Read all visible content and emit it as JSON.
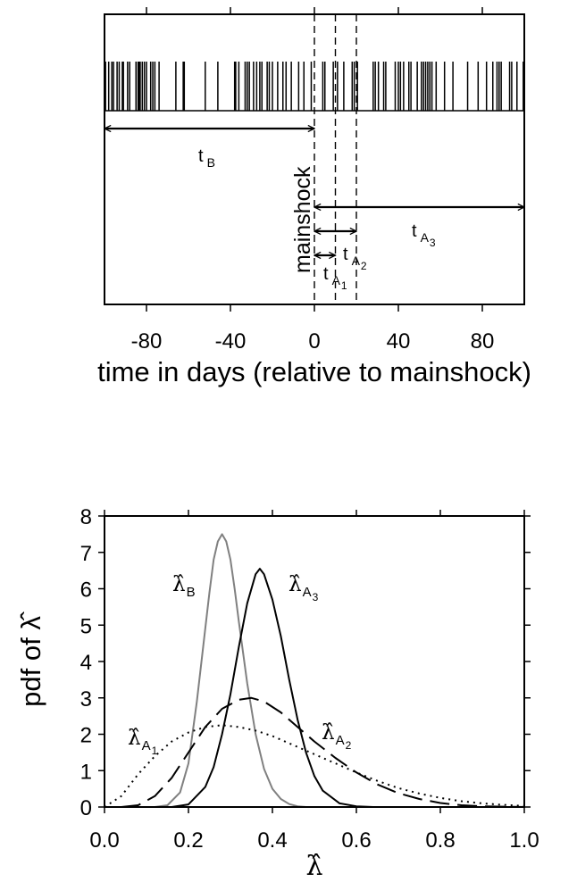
{
  "chart_data": [
    {
      "type": "event-timeline",
      "xlabel": "time in days (relative to mainshock)",
      "xlim": [
        -100,
        100
      ],
      "xticks": [
        -80,
        -40,
        0,
        40,
        80
      ],
      "xtick_labels": [
        "-80",
        "-40",
        "0",
        "40",
        "80"
      ],
      "event_times": [
        -99.5,
        -98,
        -96.5,
        -95.7,
        -94,
        -93,
        -91.5,
        -91,
        -89,
        -88,
        -85,
        -84,
        -83.5,
        -83,
        -82,
        -81,
        -80,
        -78,
        -77,
        -76,
        -74,
        -66,
        -62.5,
        -62,
        -52,
        -46,
        -38,
        -37.5,
        -36,
        -33,
        -32,
        -31,
        -29,
        -27.5,
        -26,
        -25,
        -22.5,
        -21.5,
        -20,
        -17.5,
        -15,
        -13.5,
        -11,
        -7.5,
        -5,
        -1.5,
        4,
        5,
        9,
        11,
        14,
        18,
        19,
        20.5,
        28,
        29,
        30.5,
        33,
        34,
        38.5,
        40,
        41,
        42.5,
        45,
        46,
        49,
        51,
        52,
        53,
        54,
        55,
        56,
        58,
        62,
        66,
        73,
        78,
        82,
        85,
        87,
        88,
        89,
        93,
        94,
        96.5,
        99.5
      ],
      "mainshock_marker": {
        "label": "mainshock",
        "x": 0
      },
      "reference_lines_x": [
        0,
        10,
        20
      ],
      "intervals": [
        {
          "label": "t",
          "sub": "B",
          "start": -100,
          "end": 0
        },
        {
          "label": "t",
          "sub": "A",
          "subsub": "3",
          "start": 0,
          "end": 100
        },
        {
          "label": "t",
          "sub": "A",
          "subsub": "2",
          "start": 0,
          "end": 20
        },
        {
          "label": "t",
          "sub": "A",
          "subsub": "1",
          "start": 0,
          "end": 10
        }
      ]
    },
    {
      "type": "line",
      "xlabel": "λ̂",
      "ylabel": "pdf of λ̂",
      "xlim": [
        0,
        1
      ],
      "ylim": [
        0,
        8
      ],
      "xticks": [
        0.0,
        0.2,
        0.4,
        0.6,
        0.8,
        1.0
      ],
      "xtick_labels": [
        "0.0",
        "0.2",
        "0.4",
        "0.6",
        "0.8",
        "1.0"
      ],
      "yticks": [
        0,
        1,
        2,
        3,
        4,
        5,
        6,
        7,
        8
      ],
      "ytick_labels": [
        "0",
        "1",
        "2",
        "3",
        "4",
        "5",
        "6",
        "7",
        "8"
      ],
      "series": [
        {
          "name": "λ̂B",
          "style": "solid",
          "color": "#808080",
          "x": [
            0.12,
            0.15,
            0.18,
            0.2,
            0.22,
            0.24,
            0.25,
            0.26,
            0.27,
            0.28,
            0.29,
            0.3,
            0.31,
            0.32,
            0.34,
            0.36,
            0.38,
            0.4,
            0.42,
            0.44,
            0.46,
            0.48
          ],
          "y": [
            0.0,
            0.05,
            0.4,
            1.2,
            2.9,
            4.9,
            5.9,
            6.8,
            7.3,
            7.5,
            7.3,
            6.8,
            6.0,
            5.1,
            3.4,
            2.0,
            1.05,
            0.5,
            0.22,
            0.08,
            0.02,
            0.0
          ]
        },
        {
          "name": "λ̂A3",
          "style": "solid",
          "color": "#000000",
          "x": [
            0.16,
            0.2,
            0.24,
            0.26,
            0.28,
            0.3,
            0.32,
            0.34,
            0.36,
            0.37,
            0.38,
            0.4,
            0.42,
            0.44,
            0.46,
            0.48,
            0.5,
            0.52,
            0.56,
            0.6,
            0.64
          ],
          "y": [
            0.0,
            0.07,
            0.55,
            1.1,
            2.0,
            3.1,
            4.4,
            5.6,
            6.4,
            6.55,
            6.4,
            5.7,
            4.7,
            3.5,
            2.4,
            1.5,
            0.85,
            0.45,
            0.1,
            0.02,
            0.0
          ]
        },
        {
          "name": "λ̂A2",
          "style": "dashed",
          "color": "#000000",
          "x": [
            0.04,
            0.08,
            0.12,
            0.16,
            0.2,
            0.24,
            0.28,
            0.32,
            0.35,
            0.38,
            0.42,
            0.46,
            0.5,
            0.55,
            0.6,
            0.65,
            0.7,
            0.75,
            0.8,
            0.85,
            0.9,
            0.95,
            1.0
          ],
          "y": [
            0.0,
            0.05,
            0.3,
            0.8,
            1.5,
            2.2,
            2.7,
            2.95,
            3.0,
            2.9,
            2.6,
            2.2,
            1.8,
            1.35,
            0.95,
            0.62,
            0.38,
            0.22,
            0.11,
            0.05,
            0.02,
            0.01,
            0.0
          ]
        },
        {
          "name": "λ̂A1",
          "style": "dotted",
          "color": "#000000",
          "x": [
            0.0,
            0.04,
            0.08,
            0.12,
            0.16,
            0.2,
            0.24,
            0.28,
            0.32,
            0.36,
            0.4,
            0.45,
            0.5,
            0.55,
            0.6,
            0.65,
            0.7,
            0.75,
            0.8,
            0.85,
            0.9,
            0.95,
            1.0
          ],
          "y": [
            0.0,
            0.3,
            0.9,
            1.4,
            1.8,
            2.05,
            2.2,
            2.25,
            2.2,
            2.1,
            1.95,
            1.7,
            1.45,
            1.2,
            0.95,
            0.72,
            0.52,
            0.37,
            0.25,
            0.16,
            0.1,
            0.06,
            0.03
          ]
        }
      ],
      "curve_labels": [
        {
          "series": "λ̂B",
          "text": "λ̂",
          "sub": "B",
          "subsub": ""
        },
        {
          "series": "λ̂A3",
          "text": "λ̂",
          "sub": "A",
          "subsub": "3"
        },
        {
          "series": "λ̂A2",
          "text": "λ̂",
          "sub": "A",
          "subsub": "2"
        },
        {
          "series": "λ̂A1",
          "text": "λ̂",
          "sub": "A",
          "subsub": "1"
        }
      ]
    }
  ]
}
